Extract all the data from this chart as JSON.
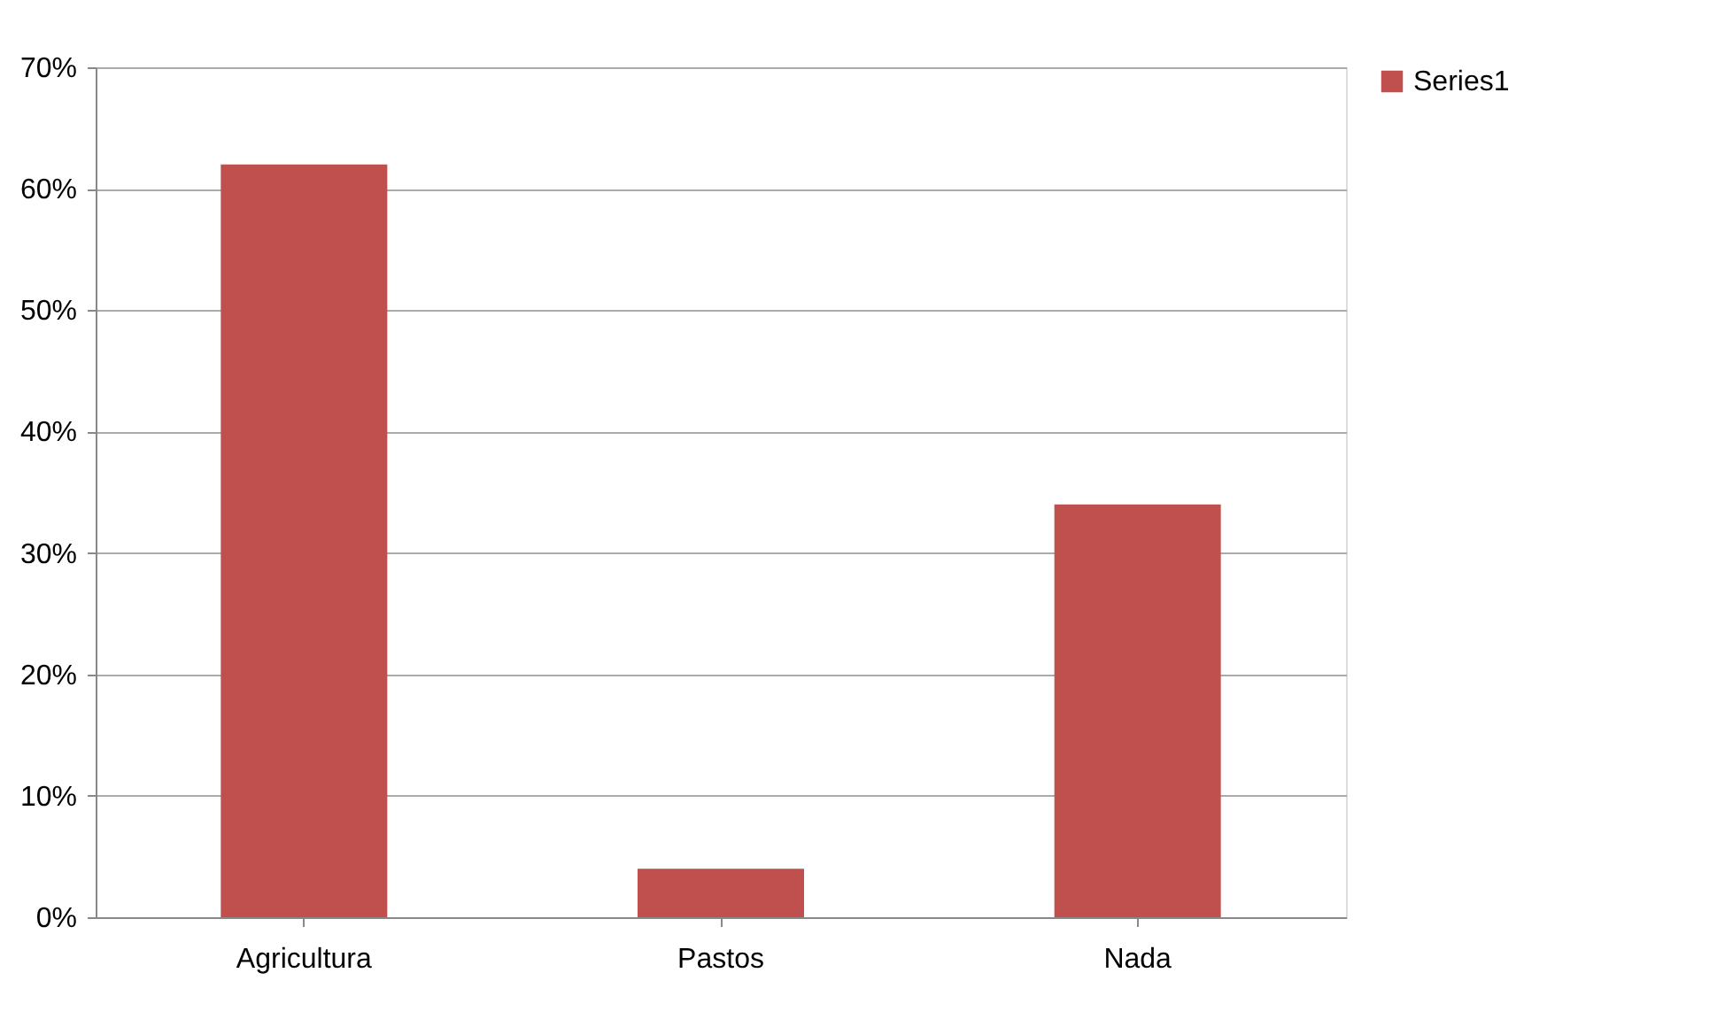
{
  "chart_data": {
    "type": "bar",
    "categories": [
      "Agricultura",
      "Pastos",
      "Nada"
    ],
    "series": [
      {
        "name": "Series1",
        "color": "#c0504d",
        "values": [
          62,
          4,
          34
        ]
      }
    ],
    "ylim": [
      0,
      70
    ],
    "yticks": [
      {
        "value": 0,
        "label": "0%"
      },
      {
        "value": 10,
        "label": "10%"
      },
      {
        "value": 20,
        "label": "20%"
      },
      {
        "value": 30,
        "label": "30%"
      },
      {
        "value": 40,
        "label": "40%"
      },
      {
        "value": 50,
        "label": "50%"
      },
      {
        "value": 60,
        "label": "60%"
      },
      {
        "value": 70,
        "label": "70%"
      }
    ],
    "grid": "y",
    "legend": "right"
  }
}
